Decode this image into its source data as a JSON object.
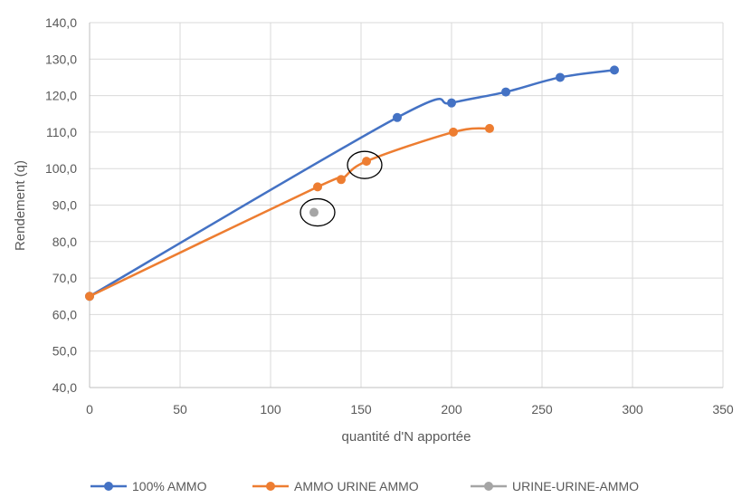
{
  "chart_data": {
    "type": "line",
    "xlabel": "quantité d'N apportée",
    "ylabel": "Rendement (q)",
    "xlim": [
      0,
      350
    ],
    "ylim": [
      40,
      140
    ],
    "xticks": [
      "0",
      "50",
      "100",
      "150",
      "200",
      "250",
      "300",
      "350"
    ],
    "yticks": [
      "40,0",
      "50,0",
      "60,0",
      "70,0",
      "80,0",
      "90,0",
      "100,0",
      "110,0",
      "120,0",
      "130,0",
      "140,0"
    ],
    "grid": true,
    "legend_position": "bottom",
    "series": [
      {
        "name": "100% AMMO",
        "color": "#4472C4",
        "x": [
          0,
          170,
          200,
          230,
          260,
          290
        ],
        "y": [
          65,
          114,
          118,
          121,
          125,
          127
        ]
      },
      {
        "name": "AMMO URINE AMMO",
        "color": "#ED7D31",
        "x": [
          0,
          126,
          139,
          153,
          201,
          221
        ],
        "y": [
          65,
          95,
          97,
          102,
          110,
          111
        ]
      },
      {
        "name": "URINE-URINE-AMMO",
        "color": "#A5A5A5",
        "x": [
          124
        ],
        "y": [
          88
        ]
      }
    ],
    "annotations": [
      {
        "type": "circle",
        "x": 152,
        "y": 101
      },
      {
        "type": "circle",
        "x": 126,
        "y": 88
      }
    ]
  }
}
